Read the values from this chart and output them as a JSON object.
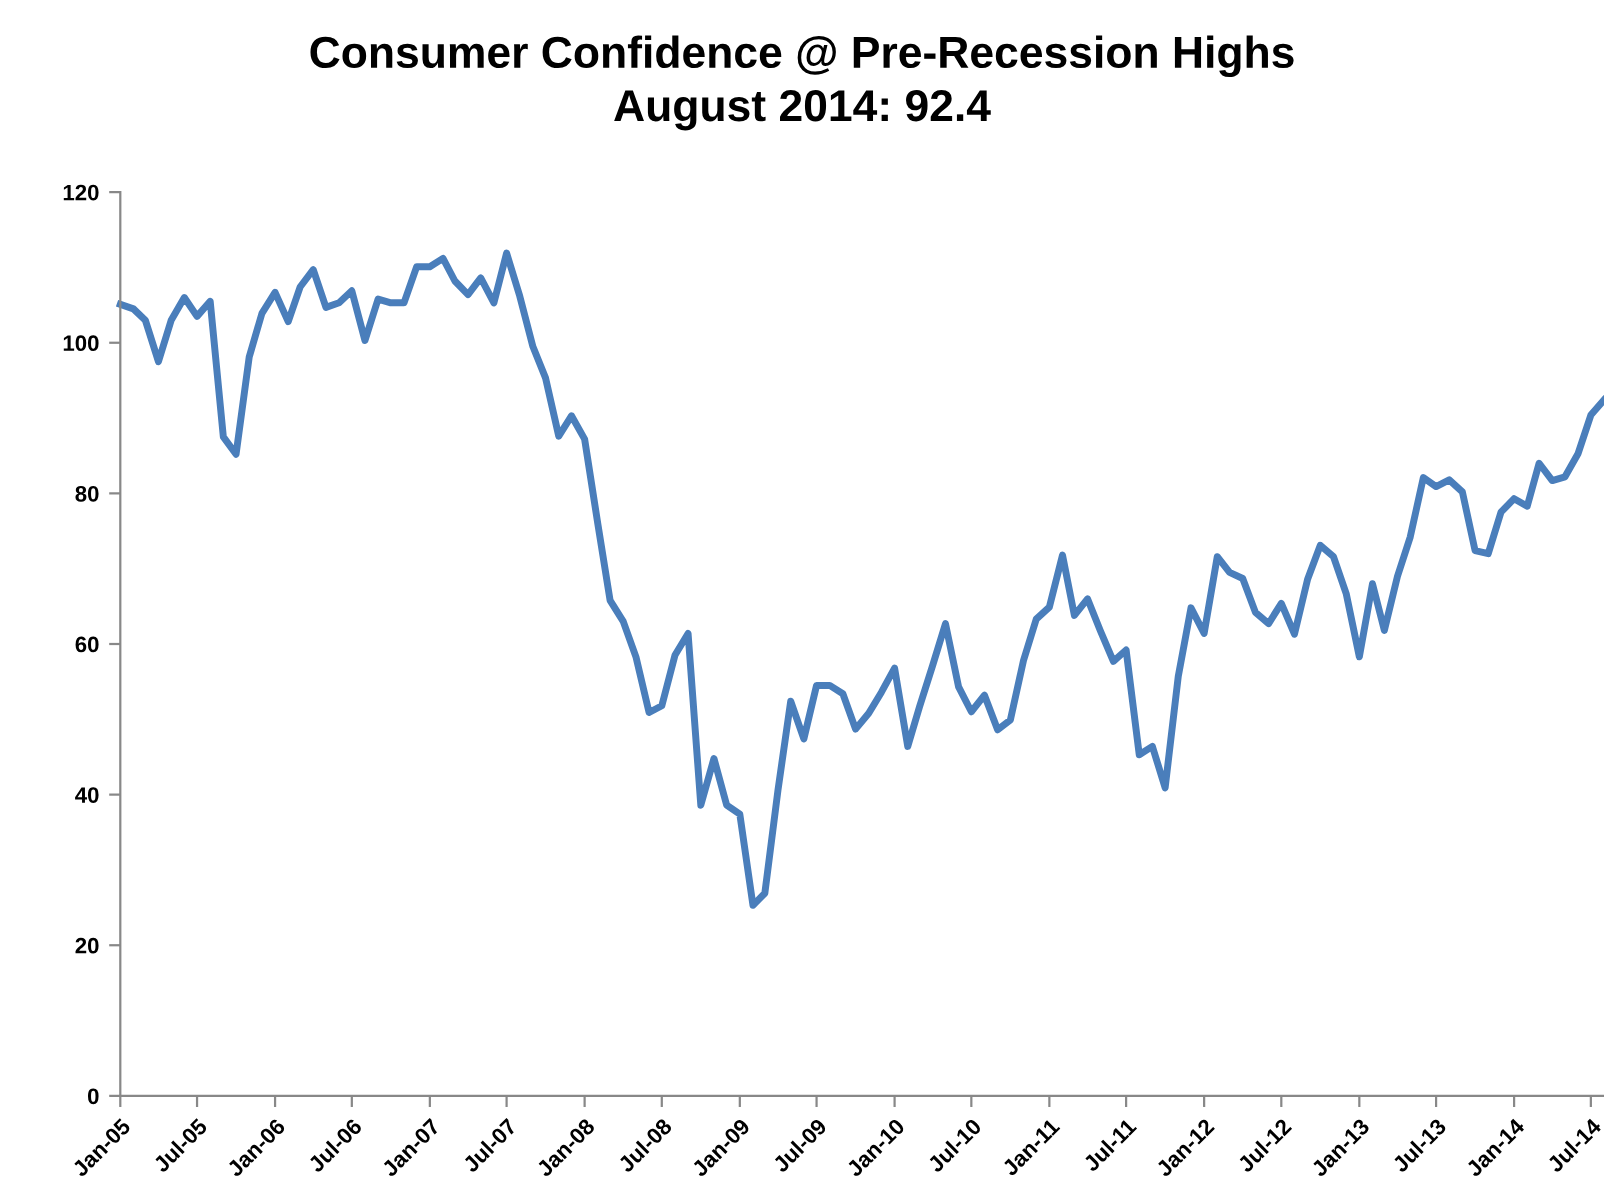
{
  "chart_data": {
    "type": "line",
    "title": "Consumer Confidence @ Pre-Recession Highs",
    "subtitle": "August 2014: 92.4",
    "x": [
      "2005-01",
      "2005-02",
      "2005-03",
      "2005-04",
      "2005-05",
      "2005-06",
      "2005-07",
      "2005-08",
      "2005-09",
      "2005-10",
      "2005-11",
      "2005-12",
      "2006-01",
      "2006-02",
      "2006-03",
      "2006-04",
      "2006-05",
      "2006-06",
      "2006-07",
      "2006-08",
      "2006-09",
      "2006-10",
      "2006-11",
      "2006-12",
      "2007-01",
      "2007-02",
      "2007-03",
      "2007-04",
      "2007-05",
      "2007-06",
      "2007-07",
      "2007-08",
      "2007-09",
      "2007-10",
      "2007-11",
      "2007-12",
      "2008-01",
      "2008-02",
      "2008-03",
      "2008-04",
      "2008-05",
      "2008-06",
      "2008-07",
      "2008-08",
      "2008-09",
      "2008-10",
      "2008-11",
      "2008-12",
      "2009-01",
      "2009-02",
      "2009-03",
      "2009-04",
      "2009-05",
      "2009-06",
      "2009-07",
      "2009-08",
      "2009-09",
      "2009-10",
      "2009-11",
      "2009-12",
      "2010-01",
      "2010-02",
      "2010-03",
      "2010-04",
      "2010-05",
      "2010-06",
      "2010-07",
      "2010-08",
      "2010-09",
      "2010-10",
      "2010-11",
      "2010-12",
      "2011-01",
      "2011-02",
      "2011-03",
      "2011-04",
      "2011-05",
      "2011-06",
      "2011-07",
      "2011-08",
      "2011-09",
      "2011-10",
      "2011-11",
      "2011-12",
      "2012-01",
      "2012-02",
      "2012-03",
      "2012-04",
      "2012-05",
      "2012-06",
      "2012-07",
      "2012-08",
      "2012-09",
      "2012-10",
      "2012-11",
      "2012-12",
      "2013-01",
      "2013-02",
      "2013-03",
      "2013-04",
      "2013-05",
      "2013-06",
      "2013-07",
      "2013-08",
      "2013-09",
      "2013-10",
      "2013-11",
      "2013-12",
      "2014-01",
      "2014-02",
      "2014-03",
      "2014-04",
      "2014-05",
      "2014-06",
      "2014-07",
      "2014-08"
    ],
    "series": [
      {
        "color": "#4a7ebb",
        "values": [
          105.1,
          104.5,
          103.0,
          97.5,
          103.0,
          106.0,
          103.5,
          105.5,
          87.5,
          85.2,
          98.1,
          103.9,
          106.7,
          102.8,
          107.4,
          109.7,
          104.7,
          105.3,
          106.9,
          100.3,
          105.8,
          105.3,
          105.3,
          110.1,
          110.1,
          111.2,
          108.2,
          106.4,
          108.6,
          105.3,
          111.9,
          106.2,
          99.5,
          95.3,
          87.6,
          90.3,
          87.2,
          76.0,
          65.8,
          63.0,
          58.3,
          50.9,
          51.8,
          58.5,
          61.4,
          38.6,
          44.8,
          38.6,
          37.4,
          25.3,
          26.9,
          40.6,
          52.4,
          47.4,
          54.5,
          54.5,
          53.4,
          48.7,
          50.8,
          53.6,
          56.8,
          46.4,
          51.7,
          57.2,
          62.7,
          54.3,
          51.0,
          53.2,
          48.6,
          49.9,
          57.8,
          63.3,
          64.9,
          71.8,
          63.8,
          66.0,
          61.8,
          57.7,
          59.2,
          45.3,
          46.4,
          40.9,
          55.7,
          64.8,
          61.4,
          71.6,
          69.5,
          68.7,
          64.2,
          62.7,
          65.4,
          61.3,
          68.6,
          73.1,
          71.6,
          66.7,
          58.3,
          68.0,
          61.8,
          69.0,
          74.2,
          82.1,
          80.9,
          81.8,
          80.2,
          72.4,
          72.0,
          77.5,
          79.3,
          78.3,
          84.0,
          81.7,
          82.2,
          85.3,
          90.4,
          92.4
        ]
      }
    ],
    "xlim": [
      "2005-01",
      "2014-08"
    ],
    "xticks": [
      {
        "value": "2005-01",
        "label": "Jan-05"
      },
      {
        "value": "2005-07",
        "label": "Jul-05"
      },
      {
        "value": "2006-01",
        "label": "Jan-06"
      },
      {
        "value": "2006-07",
        "label": "Jul-06"
      },
      {
        "value": "2007-01",
        "label": "Jan-07"
      },
      {
        "value": "2007-07",
        "label": "Jul-07"
      },
      {
        "value": "2008-01",
        "label": "Jan-08"
      },
      {
        "value": "2008-07",
        "label": "Jul-08"
      },
      {
        "value": "2009-01",
        "label": "Jan-09"
      },
      {
        "value": "2009-07",
        "label": "Jul-09"
      },
      {
        "value": "2010-01",
        "label": "Jan-10"
      },
      {
        "value": "2010-07",
        "label": "Jul-10"
      },
      {
        "value": "2011-01",
        "label": "Jan-11"
      },
      {
        "value": "2011-07",
        "label": "Jul-11"
      },
      {
        "value": "2012-01",
        "label": "Jan-12"
      },
      {
        "value": "2012-07",
        "label": "Jul-12"
      },
      {
        "value": "2013-01",
        "label": "Jan-13"
      },
      {
        "value": "2013-07",
        "label": "Jul-13"
      },
      {
        "value": "2014-01",
        "label": "Jan-14"
      },
      {
        "value": "2014-07",
        "label": "Jul-14"
      }
    ],
    "ylim": [
      0,
      120
    ],
    "yticks": [
      0,
      20,
      40,
      60,
      80,
      100,
      120
    ],
    "grid": false,
    "marker": "none",
    "line_style": "solid"
  }
}
